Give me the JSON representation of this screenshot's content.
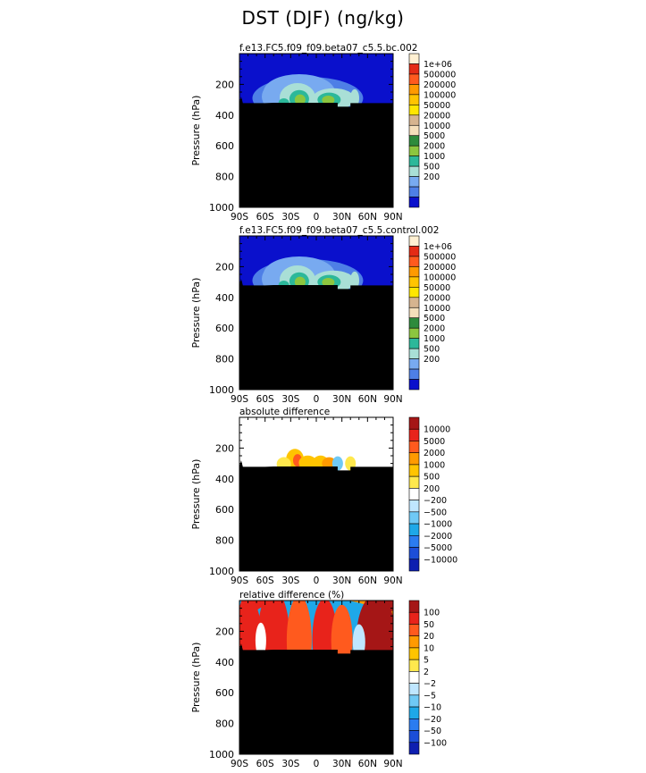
{
  "figure": {
    "title": "DST (DJF) (ng/kg)"
  },
  "chart_data": [
    {
      "type": "heatmap",
      "title": "f.e13.FC5.f09_f09.beta07_c5.5.bc.002",
      "ylabel": "Pressure (hPa)",
      "x_ticks": [
        "90S",
        "60S",
        "30S",
        "0",
        "30N",
        "60N",
        "90N"
      ],
      "y_ticks": [
        200,
        400,
        600,
        800,
        1000
      ],
      "ylim": [
        1000,
        0
      ],
      "colorbar_labels": [
        "1e+06",
        "500000",
        "200000",
        "100000",
        "50000",
        "20000",
        "10000",
        "5000",
        "2000",
        "1000",
        "500",
        "200"
      ],
      "colors": [
        "#fff0d2",
        "#e42b15",
        "#ff5a1e",
        "#ff9a00",
        "#ffc400",
        "#ffe600",
        "#d6b48f",
        "#f5dfbb",
        "#2e8b3c",
        "#8cc63f",
        "#2cb89a",
        "#a9dfd6",
        "#78aaf0",
        "#4e7fe6",
        "#0a10cc"
      ],
      "background_color": "#0a10cc"
    },
    {
      "type": "heatmap",
      "title": "f.e13.FC5.f09_f09.beta07_c5.5.control.002",
      "ylabel": "Pressure (hPa)",
      "x_ticks": [
        "90S",
        "60S",
        "30S",
        "0",
        "30N",
        "60N",
        "90N"
      ],
      "y_ticks": [
        200,
        400,
        600,
        800,
        1000
      ],
      "ylim": [
        1000,
        0
      ],
      "colorbar_labels": [
        "1e+06",
        "500000",
        "200000",
        "100000",
        "50000",
        "20000",
        "10000",
        "5000",
        "2000",
        "1000",
        "500",
        "200"
      ],
      "colors": [
        "#fff0d2",
        "#e42b15",
        "#ff5a1e",
        "#ff9a00",
        "#ffc400",
        "#ffe600",
        "#d6b48f",
        "#f5dfbb",
        "#2e8b3c",
        "#8cc63f",
        "#2cb89a",
        "#a9dfd6",
        "#78aaf0",
        "#4e7fe6",
        "#0a10cc"
      ],
      "background_color": "#0a10cc"
    },
    {
      "type": "heatmap",
      "title": "absolute difference",
      "ylabel": "Pressure (hPa)",
      "x_ticks": [
        "90S",
        "60S",
        "30S",
        "0",
        "30N",
        "60N",
        "90N"
      ],
      "y_ticks": [
        200,
        400,
        600,
        800,
        1000
      ],
      "ylim": [
        1000,
        0
      ],
      "colorbar_labels": [
        "10000",
        "5000",
        "2000",
        "1000",
        "500",
        "200",
        "−200",
        "−500",
        "−1000",
        "−2000",
        "−5000",
        "−10000"
      ],
      "colors": [
        "#a51616",
        "#e8231b",
        "#ff5a1e",
        "#ff9a00",
        "#ffc400",
        "#ffe84d",
        "#ffffff",
        "#bfe6ff",
        "#6fc9f5",
        "#1ea8e8",
        "#2b7cf0",
        "#1c4ed8",
        "#0e1fb0"
      ],
      "background_color": "#ffffff"
    },
    {
      "type": "heatmap",
      "title": "relative difference (%)",
      "ylabel": "Pressure (hPa)",
      "x_ticks": [
        "90S",
        "60S",
        "30S",
        "0",
        "30N",
        "60N",
        "90N"
      ],
      "y_ticks": [
        200,
        400,
        600,
        800,
        1000
      ],
      "ylim": [
        1000,
        0
      ],
      "colorbar_labels": [
        "100",
        "50",
        "20",
        "10",
        "5",
        "2",
        "−2",
        "−5",
        "−10",
        "−20",
        "−50",
        "−100"
      ],
      "colors": [
        "#a51616",
        "#e8231b",
        "#ff5a1e",
        "#ff9a00",
        "#ffc400",
        "#ffe84d",
        "#ffffff",
        "#bfe6ff",
        "#6fc9f5",
        "#1ea8e8",
        "#2b7cf0",
        "#1c4ed8",
        "#0e1fb0"
      ],
      "background_color": "#1ea8e8"
    }
  ]
}
